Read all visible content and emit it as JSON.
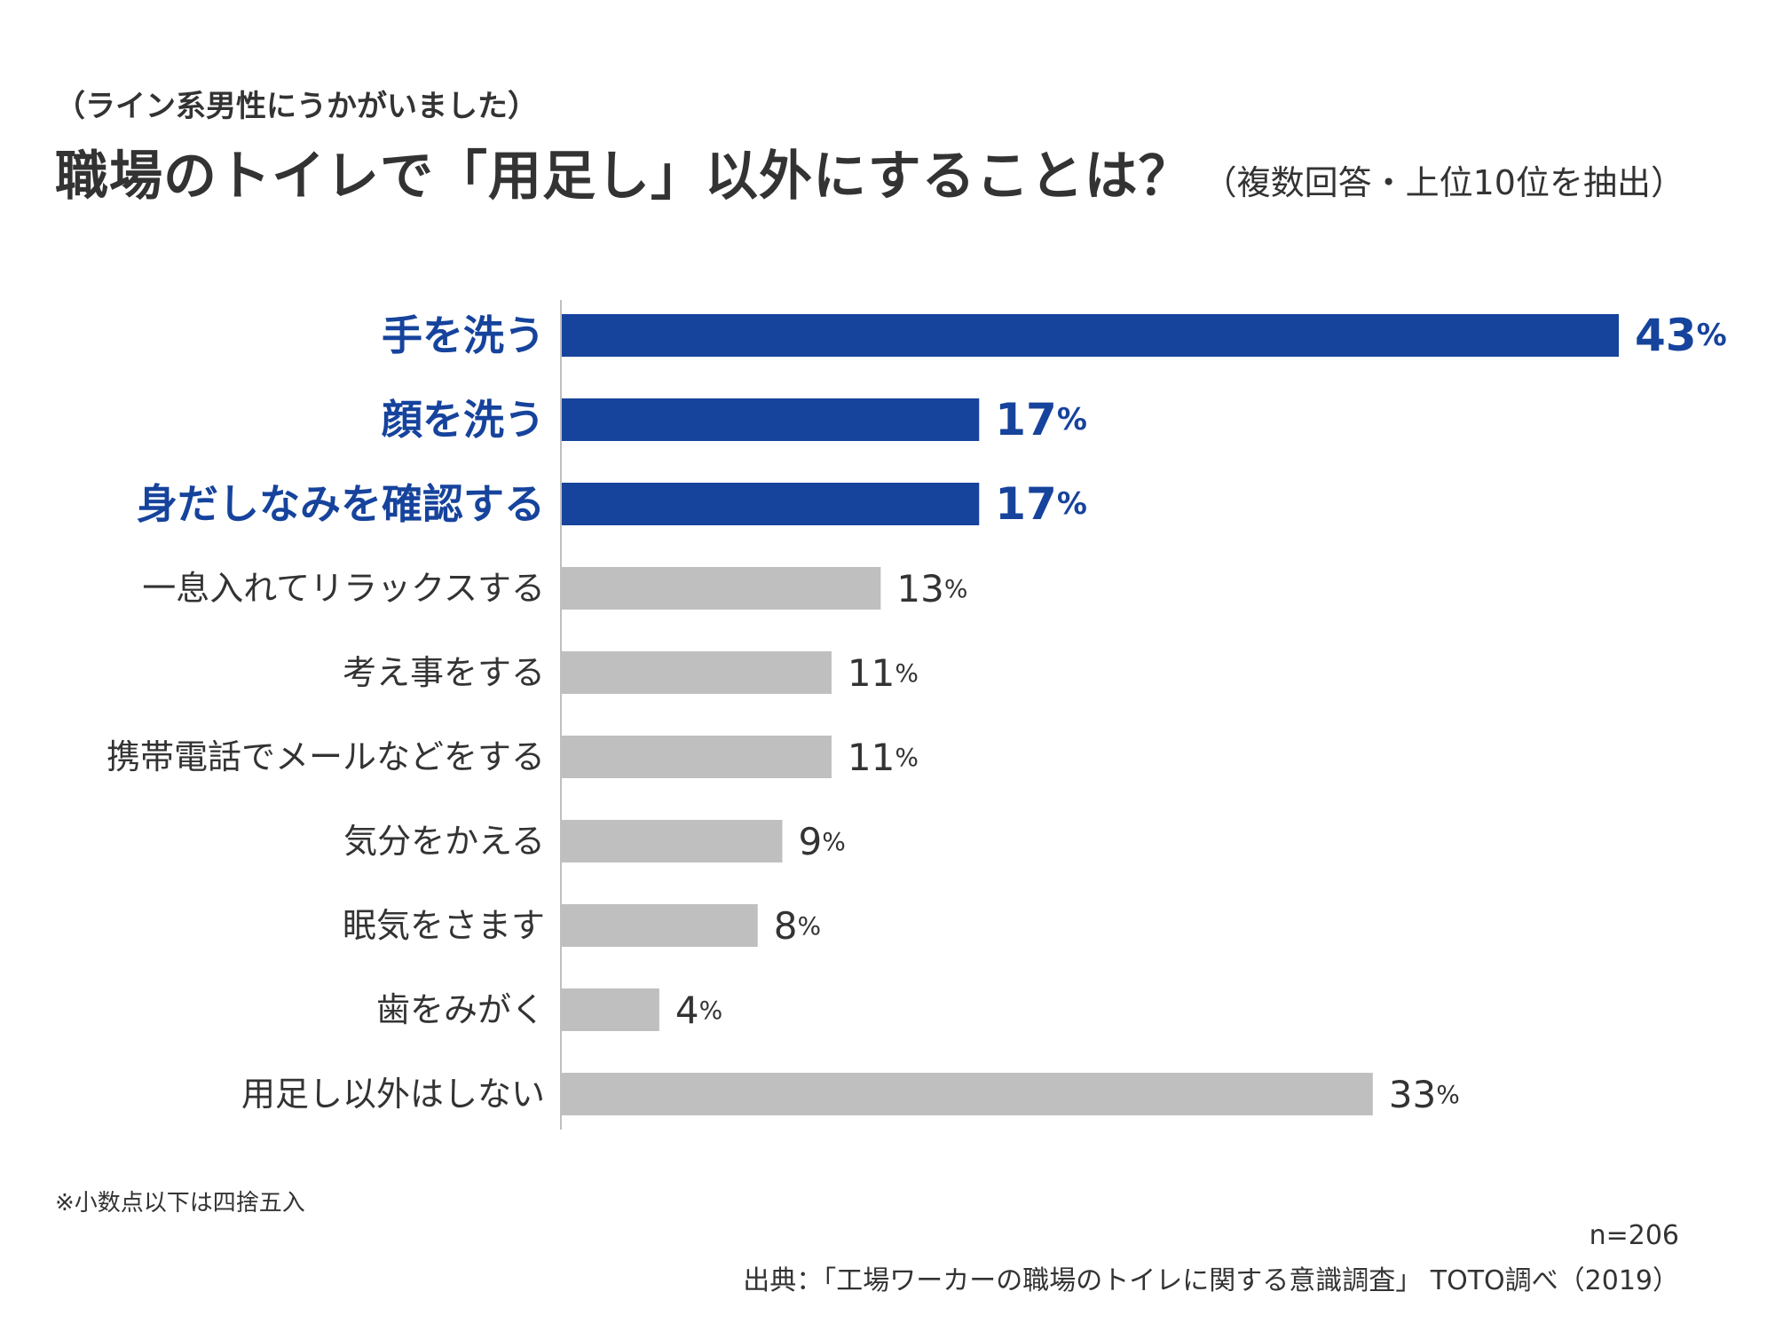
{
  "header": {
    "subtitle": "（ライン系男性にうかがいました）",
    "title": "職場のトイレで「用足し」以外にすることは？",
    "title_note": "（複数回答・上位10位を抽出）"
  },
  "chart_data": {
    "type": "bar",
    "orientation": "horizontal",
    "categories": [
      "手を洗う",
      "顔を洗う",
      "身だしなみを確認する",
      "一息入れてリラックスする",
      "考え事をする",
      "携帯電話でメールなどをする",
      "気分をかえる",
      "眠気をさます",
      "歯をみがく",
      "用足し以外はしない"
    ],
    "values": [
      43,
      17,
      17,
      13,
      11,
      11,
      9,
      8,
      4,
      33
    ],
    "value_labels": [
      "43",
      "17",
      "17",
      "13",
      "11",
      "11",
      "9",
      "8",
      "4",
      "33"
    ],
    "unit": "%",
    "highlight_count": 3,
    "colors": {
      "highlight": "#16439C",
      "normal": "#BFBFBF",
      "text": "#333333",
      "axis": "#BFBFBF"
    },
    "xlim": [
      0,
      43
    ],
    "grid": false,
    "legend": "none"
  },
  "footer": {
    "footnote": "※小数点以下は四捨五入",
    "sample": "n=206",
    "source": "出典：「工場ワーカーの職場のトイレに関する意識調査」 TOTO調べ（2019）"
  }
}
